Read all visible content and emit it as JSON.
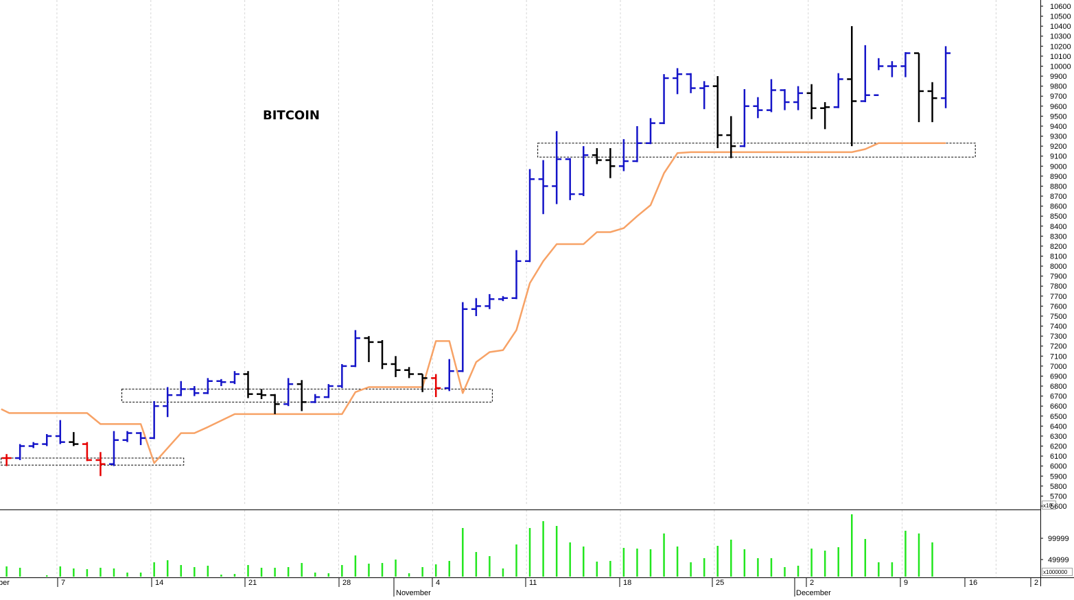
{
  "chart_data": {
    "type": "ohlc",
    "title": "BITCOIN",
    "price_axis": {
      "ylim": [
        5600,
        10600
      ],
      "tick_labels": [
        "10600",
        "10500",
        "10400",
        "10300",
        "10200",
        "10100",
        "10000",
        "9900",
        "9800",
        "9700",
        "9600",
        "9500",
        "9400",
        "9300",
        "9200",
        "9100",
        "9000",
        "8900",
        "8800",
        "8700",
        "8600",
        "8500",
        "8400",
        "8300",
        "8200",
        "8100",
        "8000",
        "7900",
        "7800",
        "7700",
        "7600",
        "7500",
        "7400",
        "7300",
        "7200",
        "7100",
        "7000",
        "6900",
        "6800",
        "6700",
        "6600",
        "6500",
        "6400",
        "6300",
        "6200",
        "6100",
        "6000",
        "5900",
        "5800",
        "5700",
        "5600"
      ]
    },
    "volume_axis": {
      "tick_labels": [
        "99999",
        "49999"
      ],
      "multiplier_top": "x10",
      "multiplier_bottom": "x1000000"
    },
    "x_axis": {
      "labels": [
        "ber",
        "7",
        "14",
        "21",
        "28",
        "November",
        "4",
        "11",
        "18",
        "25",
        "December",
        "2",
        "9",
        "16",
        "2"
      ],
      "grid": true
    },
    "series_colors": {
      "up": "#1414c8",
      "down": "#000000",
      "alert": "#e60000",
      "trail": "#f7a266",
      "volume": "#22e61e"
    },
    "bars": [
      {
        "idx": 0,
        "color": "alert",
        "o": 6080,
        "h": 6120,
        "l": 6000,
        "c": 6080
      },
      {
        "idx": 1,
        "color": "up",
        "o": 6080,
        "h": 6220,
        "l": 6060,
        "c": 6200
      },
      {
        "idx": 2,
        "color": "up",
        "o": 6200,
        "h": 6240,
        "l": 6180,
        "c": 6220
      },
      {
        "idx": 3,
        "color": "up",
        "o": 6220,
        "h": 6320,
        "l": 6200,
        "c": 6300
      },
      {
        "idx": 4,
        "color": "up",
        "o": 6300,
        "h": 6460,
        "l": 6220,
        "c": 6240
      },
      {
        "idx": 5,
        "color": "down",
        "o": 6240,
        "h": 6340,
        "l": 6200,
        "c": 6220
      },
      {
        "idx": 6,
        "color": "alert",
        "o": 6220,
        "h": 6240,
        "l": 6050,
        "c": 6060
      },
      {
        "idx": 7,
        "color": "alert",
        "o": 6060,
        "h": 6140,
        "l": 5900,
        "c": 6020
      },
      {
        "idx": 8,
        "color": "up",
        "o": 6020,
        "h": 6350,
        "l": 6000,
        "c": 6260
      },
      {
        "idx": 9,
        "color": "up",
        "o": 6260,
        "h": 6350,
        "l": 6240,
        "c": 6330
      },
      {
        "idx": 10,
        "color": "up",
        "o": 6330,
        "h": 6340,
        "l": 6210,
        "c": 6280
      },
      {
        "idx": 11,
        "color": "up",
        "o": 6280,
        "h": 6650,
        "l": 6270,
        "c": 6600
      },
      {
        "idx": 12,
        "color": "up",
        "o": 6600,
        "h": 6790,
        "l": 6490,
        "c": 6710
      },
      {
        "idx": 13,
        "color": "up",
        "o": 6710,
        "h": 6850,
        "l": 6700,
        "c": 6770
      },
      {
        "idx": 14,
        "color": "up",
        "o": 6770,
        "h": 6800,
        "l": 6700,
        "c": 6730
      },
      {
        "idx": 15,
        "color": "up",
        "o": 6730,
        "h": 6880,
        "l": 6720,
        "c": 6850
      },
      {
        "idx": 16,
        "color": "up",
        "o": 6850,
        "h": 6870,
        "l": 6800,
        "c": 6840
      },
      {
        "idx": 17,
        "color": "up",
        "o": 6840,
        "h": 6950,
        "l": 6820,
        "c": 6920
      },
      {
        "idx": 18,
        "color": "down",
        "o": 6920,
        "h": 6950,
        "l": 6680,
        "c": 6720
      },
      {
        "idx": 19,
        "color": "down",
        "o": 6720,
        "h": 6770,
        "l": 6670,
        "c": 6710
      },
      {
        "idx": 20,
        "color": "down",
        "o": 6710,
        "h": 6720,
        "l": 6520,
        "c": 6620
      },
      {
        "idx": 21,
        "color": "up",
        "o": 6620,
        "h": 6880,
        "l": 6600,
        "c": 6820
      },
      {
        "idx": 22,
        "color": "down",
        "o": 6820,
        "h": 6860,
        "l": 6550,
        "c": 6640
      },
      {
        "idx": 23,
        "color": "up",
        "o": 6640,
        "h": 6720,
        "l": 6630,
        "c": 6690
      },
      {
        "idx": 24,
        "color": "up",
        "o": 6690,
        "h": 6820,
        "l": 6680,
        "c": 6800
      },
      {
        "idx": 25,
        "color": "up",
        "o": 6800,
        "h": 7020,
        "l": 6780,
        "c": 7000
      },
      {
        "idx": 26,
        "color": "up",
        "o": 7000,
        "h": 7360,
        "l": 6990,
        "c": 7280
      },
      {
        "idx": 27,
        "color": "down",
        "o": 7280,
        "h": 7300,
        "l": 7040,
        "c": 7240
      },
      {
        "idx": 28,
        "color": "down",
        "o": 7240,
        "h": 7260,
        "l": 6970,
        "c": 7020
      },
      {
        "idx": 29,
        "color": "down",
        "o": 7020,
        "h": 7100,
        "l": 6890,
        "c": 6960
      },
      {
        "idx": 30,
        "color": "down",
        "o": 6960,
        "h": 6990,
        "l": 6880,
        "c": 6920
      },
      {
        "idx": 31,
        "color": "down",
        "o": 6920,
        "h": 6920,
        "l": 6740,
        "c": 6880
      },
      {
        "idx": 32,
        "color": "alert",
        "o": 6880,
        "h": 6920,
        "l": 6690,
        "c": 6780
      },
      {
        "idx": 33,
        "color": "up",
        "o": 6780,
        "h": 7070,
        "l": 6750,
        "c": 6950
      },
      {
        "idx": 34,
        "color": "up",
        "o": 6950,
        "h": 7640,
        "l": 6940,
        "c": 7570
      },
      {
        "idx": 35,
        "color": "up",
        "o": 7570,
        "h": 7680,
        "l": 7500,
        "c": 7600
      },
      {
        "idx": 36,
        "color": "up",
        "o": 7600,
        "h": 7720,
        "l": 7570,
        "c": 7670
      },
      {
        "idx": 37,
        "color": "up",
        "o": 7670,
        "h": 7700,
        "l": 7650,
        "c": 7680
      },
      {
        "idx": 38,
        "color": "up",
        "o": 7680,
        "h": 8160,
        "l": 7670,
        "c": 8050
      },
      {
        "idx": 39,
        "color": "up",
        "o": 8050,
        "h": 8970,
        "l": 8040,
        "c": 8870
      },
      {
        "idx": 40,
        "color": "up",
        "o": 8870,
        "h": 9060,
        "l": 8520,
        "c": 8800
      },
      {
        "idx": 41,
        "color": "up",
        "o": 8800,
        "h": 9350,
        "l": 8620,
        "c": 9070
      },
      {
        "idx": 42,
        "color": "up",
        "o": 9070,
        "h": 9080,
        "l": 8660,
        "c": 8720
      },
      {
        "idx": 43,
        "color": "up",
        "o": 8720,
        "h": 9200,
        "l": 8700,
        "c": 9110
      },
      {
        "idx": 44,
        "color": "down",
        "o": 9110,
        "h": 9180,
        "l": 9020,
        "c": 9060
      },
      {
        "idx": 45,
        "color": "down",
        "o": 9060,
        "h": 9180,
        "l": 8880,
        "c": 9000
      },
      {
        "idx": 46,
        "color": "up",
        "o": 9000,
        "h": 9270,
        "l": 8950,
        "c": 9050
      },
      {
        "idx": 47,
        "color": "up",
        "o": 9050,
        "h": 9400,
        "l": 9040,
        "c": 9230
      },
      {
        "idx": 48,
        "color": "up",
        "o": 9230,
        "h": 9480,
        "l": 9220,
        "c": 9430
      },
      {
        "idx": 49,
        "color": "up",
        "o": 9430,
        "h": 9920,
        "l": 9420,
        "c": 9880
      },
      {
        "idx": 50,
        "color": "up",
        "o": 9880,
        "h": 9980,
        "l": 9720,
        "c": 9920
      },
      {
        "idx": 51,
        "color": "up",
        "o": 9920,
        "h": 9930,
        "l": 9730,
        "c": 9780
      },
      {
        "idx": 52,
        "color": "up",
        "o": 9780,
        "h": 9850,
        "l": 9570,
        "c": 9800
      },
      {
        "idx": 53,
        "color": "down",
        "o": 9800,
        "h": 9900,
        "l": 9180,
        "c": 9310
      },
      {
        "idx": 54,
        "color": "down",
        "o": 9310,
        "h": 9500,
        "l": 9080,
        "c": 9200
      },
      {
        "idx": 55,
        "color": "up",
        "o": 9200,
        "h": 9770,
        "l": 9190,
        "c": 9600
      },
      {
        "idx": 56,
        "color": "up",
        "o": 9600,
        "h": 9690,
        "l": 9480,
        "c": 9560
      },
      {
        "idx": 57,
        "color": "up",
        "o": 9560,
        "h": 9870,
        "l": 9540,
        "c": 9760
      },
      {
        "idx": 58,
        "color": "up",
        "o": 9760,
        "h": 9770,
        "l": 9560,
        "c": 9640
      },
      {
        "idx": 59,
        "color": "up",
        "o": 9640,
        "h": 9800,
        "l": 9560,
        "c": 9730
      },
      {
        "idx": 60,
        "color": "down",
        "o": 9730,
        "h": 9820,
        "l": 9470,
        "c": 9580
      },
      {
        "idx": 61,
        "color": "down",
        "o": 9580,
        "h": 9640,
        "l": 9370,
        "c": 9590
      },
      {
        "idx": 62,
        "color": "up",
        "o": 9590,
        "h": 9930,
        "l": 9580,
        "c": 9870
      },
      {
        "idx": 63,
        "color": "down",
        "o": 9870,
        "h": 10400,
        "l": 9200,
        "c": 9650
      },
      {
        "idx": 64,
        "color": "up",
        "o": 9650,
        "h": 10210,
        "l": 9640,
        "c": 9710
      },
      {
        "idx": 65,
        "color": "up",
        "o": 9710,
        "h": 10080,
        "l": 9960,
        "c": 10000
      },
      {
        "idx": 66,
        "color": "up",
        "o": 10000,
        "h": 10050,
        "l": 9890,
        "c": 10000
      },
      {
        "idx": 67,
        "color": "up",
        "o": 10000,
        "h": 10140,
        "l": 9890,
        "c": 10130
      },
      {
        "idx": 68,
        "color": "down",
        "o": 10130,
        "h": 10130,
        "l": 9440,
        "c": 9750
      },
      {
        "idx": 69,
        "color": "down",
        "o": 9750,
        "h": 9840,
        "l": 9440,
        "c": 9680
      },
      {
        "idx": 70,
        "color": "up",
        "o": 9680,
        "h": 10200,
        "l": 9580,
        "c": 10130
      }
    ],
    "trailing_stop": [
      {
        "idx": -0.4,
        "v": 6570
      },
      {
        "idx": 0.2,
        "v": 6530
      },
      {
        "idx": 6,
        "v": 6530
      },
      {
        "idx": 7,
        "v": 6420
      },
      {
        "idx": 10,
        "v": 6420
      },
      {
        "idx": 11,
        "v": 6030
      },
      {
        "idx": 13,
        "v": 6330
      },
      {
        "idx": 14,
        "v": 6330
      },
      {
        "idx": 15,
        "v": 6390
      },
      {
        "idx": 17,
        "v": 6520
      },
      {
        "idx": 25,
        "v": 6520
      },
      {
        "idx": 26,
        "v": 6740
      },
      {
        "idx": 27,
        "v": 6790
      },
      {
        "idx": 31,
        "v": 6790
      },
      {
        "idx": 32,
        "v": 7250
      },
      {
        "idx": 33,
        "v": 7250
      },
      {
        "idx": 34,
        "v": 6730
      },
      {
        "idx": 35,
        "v": 7040
      },
      {
        "idx": 36,
        "v": 7140
      },
      {
        "idx": 37,
        "v": 7160
      },
      {
        "idx": 38,
        "v": 7360
      },
      {
        "idx": 39,
        "v": 7830
      },
      {
        "idx": 40,
        "v": 8050
      },
      {
        "idx": 41,
        "v": 8220
      },
      {
        "idx": 43,
        "v": 8220
      },
      {
        "idx": 44,
        "v": 8340
      },
      {
        "idx": 45,
        "v": 8340
      },
      {
        "idx": 46,
        "v": 8380
      },
      {
        "idx": 47,
        "v": 8500
      },
      {
        "idx": 48,
        "v": 8610
      },
      {
        "idx": 49,
        "v": 8930
      },
      {
        "idx": 50,
        "v": 9130
      },
      {
        "idx": 51,
        "v": 9140
      },
      {
        "idx": 63,
        "v": 9140
      },
      {
        "idx": 64,
        "v": 9170
      },
      {
        "idx": 65,
        "v": 9230
      },
      {
        "idx": 70,
        "v": 9230
      }
    ],
    "support_zones": [
      {
        "from_idx": 0,
        "to_idx": 13,
        "lo": 6010,
        "hi": 6080
      },
      {
        "from_idx": 9,
        "to_idx": 36,
        "lo": 6640,
        "hi": 6770
      },
      {
        "from_idx": 40,
        "to_idx": 72,
        "lo": 9090,
        "hi": 9230
      }
    ],
    "volume_bars": [
      {
        "idx": 0,
        "v": 0.15
      },
      {
        "idx": 1,
        "v": 0.13
      },
      {
        "idx": 3,
        "v": 0.02
      },
      {
        "idx": 4,
        "v": 0.15
      },
      {
        "idx": 5,
        "v": 0.12
      },
      {
        "idx": 6,
        "v": 0.11
      },
      {
        "idx": 7,
        "v": 0.13
      },
      {
        "idx": 8,
        "v": 0.12
      },
      {
        "idx": 9,
        "v": 0.06
      },
      {
        "idx": 10,
        "v": 0.06
      },
      {
        "idx": 11,
        "v": 0.21
      },
      {
        "idx": 12,
        "v": 0.24
      },
      {
        "idx": 13,
        "v": 0.17
      },
      {
        "idx": 14,
        "v": 0.14
      },
      {
        "idx": 15,
        "v": 0.16
      },
      {
        "idx": 16,
        "v": 0.03
      },
      {
        "idx": 17,
        "v": 0.04
      },
      {
        "idx": 18,
        "v": 0.17
      },
      {
        "idx": 19,
        "v": 0.13
      },
      {
        "idx": 20,
        "v": 0.13
      },
      {
        "idx": 21,
        "v": 0.14
      },
      {
        "idx": 22,
        "v": 0.2
      },
      {
        "idx": 23,
        "v": 0.06
      },
      {
        "idx": 24,
        "v": 0.05
      },
      {
        "idx": 25,
        "v": 0.17
      },
      {
        "idx": 26,
        "v": 0.31
      },
      {
        "idx": 27,
        "v": 0.19
      },
      {
        "idx": 28,
        "v": 0.2
      },
      {
        "idx": 29,
        "v": 0.25
      },
      {
        "idx": 30,
        "v": 0.05
      },
      {
        "idx": 31,
        "v": 0.14
      },
      {
        "idx": 32,
        "v": 0.18
      },
      {
        "idx": 33,
        "v": 0.23
      },
      {
        "idx": 34,
        "v": 0.71
      },
      {
        "idx": 35,
        "v": 0.36
      },
      {
        "idx": 36,
        "v": 0.3
      },
      {
        "idx": 37,
        "v": 0.12
      },
      {
        "idx": 38,
        "v": 0.47
      },
      {
        "idx": 39,
        "v": 0.71
      },
      {
        "idx": 40,
        "v": 0.81
      },
      {
        "idx": 41,
        "v": 0.74
      },
      {
        "idx": 42,
        "v": 0.5
      },
      {
        "idx": 43,
        "v": 0.44
      },
      {
        "idx": 44,
        "v": 0.22
      },
      {
        "idx": 45,
        "v": 0.23
      },
      {
        "idx": 46,
        "v": 0.42
      },
      {
        "idx": 47,
        "v": 0.41
      },
      {
        "idx": 48,
        "v": 0.4
      },
      {
        "idx": 49,
        "v": 0.63
      },
      {
        "idx": 50,
        "v": 0.44
      },
      {
        "idx": 51,
        "v": 0.21
      },
      {
        "idx": 52,
        "v": 0.27
      },
      {
        "idx": 53,
        "v": 0.45
      },
      {
        "idx": 54,
        "v": 0.54
      },
      {
        "idx": 55,
        "v": 0.4
      },
      {
        "idx": 56,
        "v": 0.27
      },
      {
        "idx": 57,
        "v": 0.27
      },
      {
        "idx": 58,
        "v": 0.14
      },
      {
        "idx": 59,
        "v": 0.16
      },
      {
        "idx": 60,
        "v": 0.41
      },
      {
        "idx": 61,
        "v": 0.38
      },
      {
        "idx": 62,
        "v": 0.43
      },
      {
        "idx": 63,
        "v": 0.91
      },
      {
        "idx": 64,
        "v": 0.55
      },
      {
        "idx": 65,
        "v": 0.21
      },
      {
        "idx": 66,
        "v": 0.21
      },
      {
        "idx": 67,
        "v": 0.67
      },
      {
        "idx": 68,
        "v": 0.63
      },
      {
        "idx": 69,
        "v": 0.5
      }
    ]
  }
}
